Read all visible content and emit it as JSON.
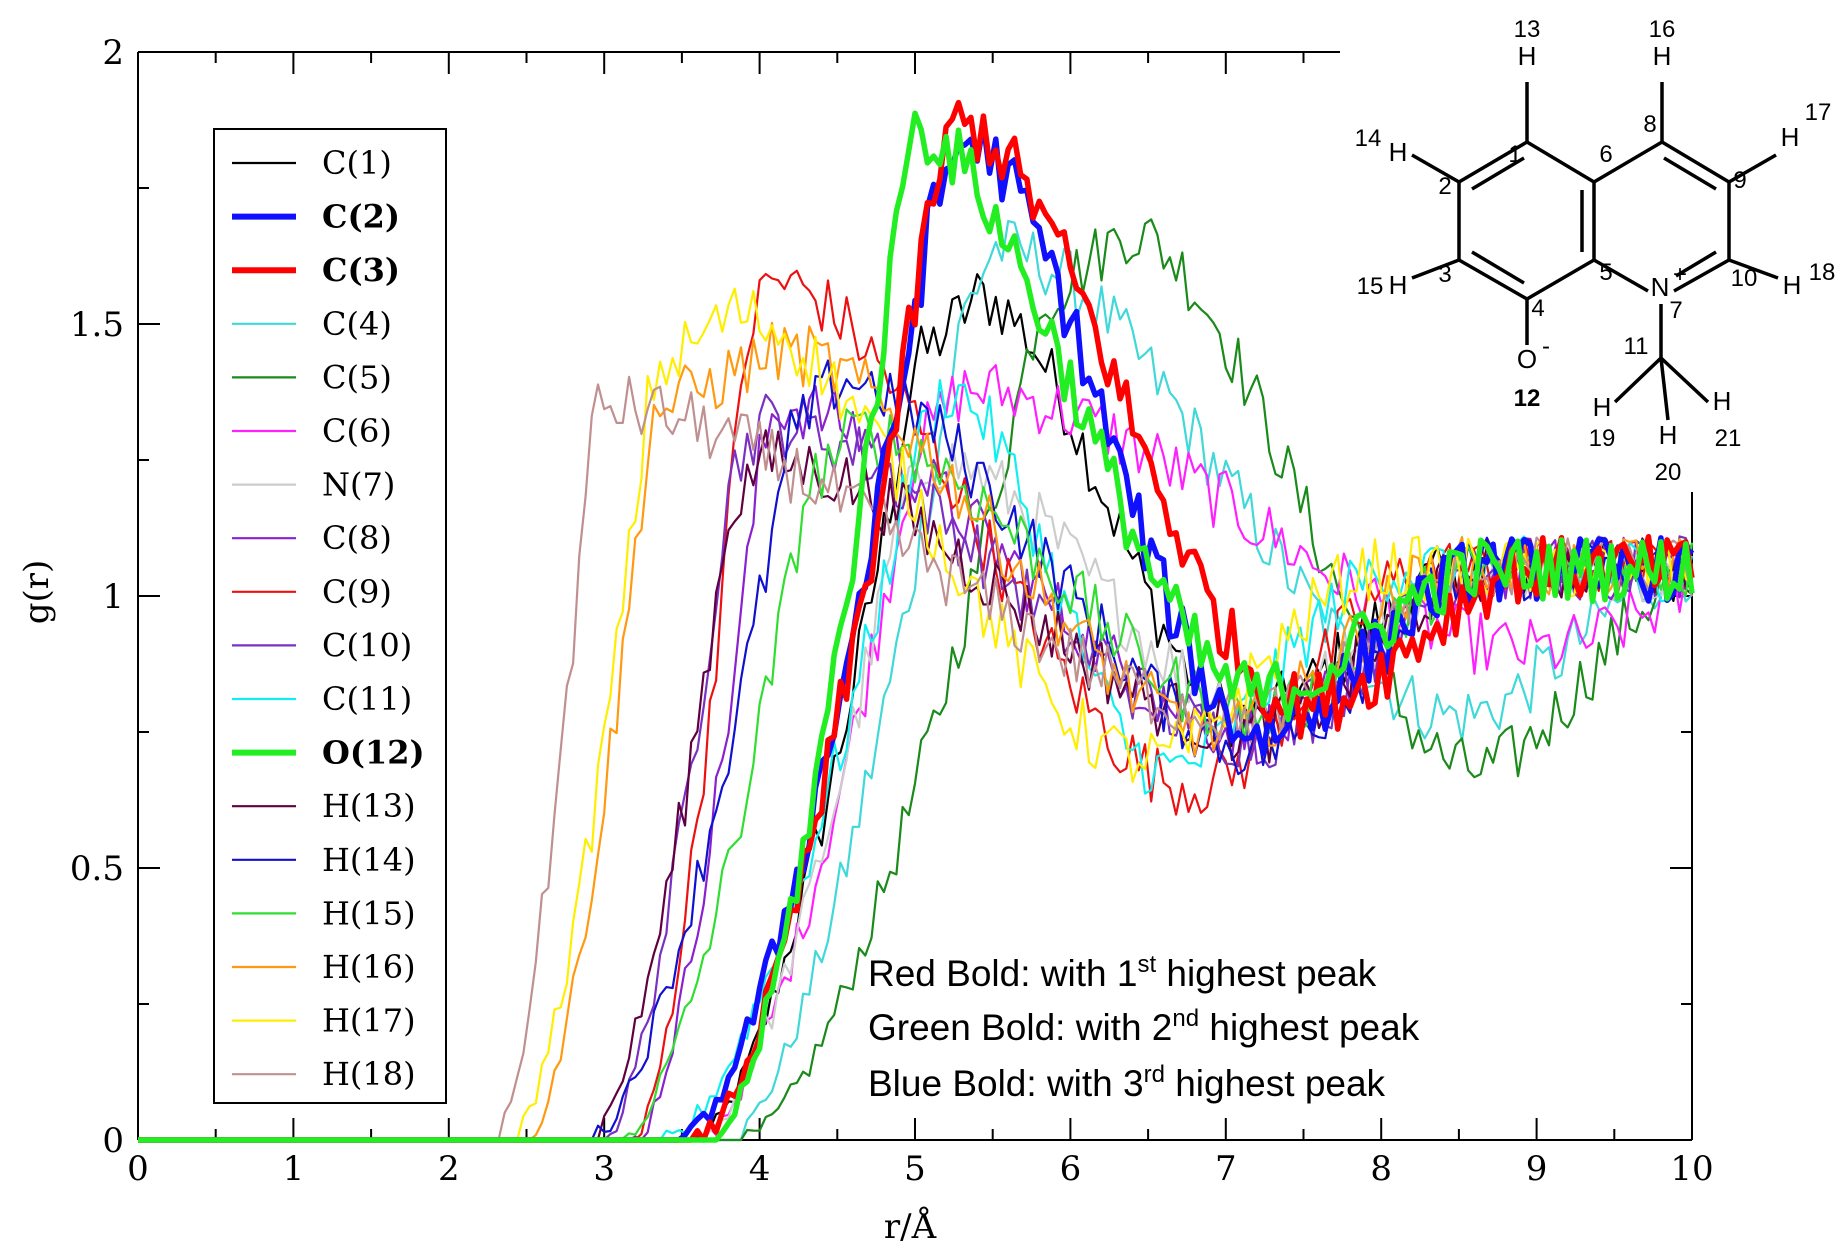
{
  "chart_data": {
    "type": "line",
    "xlabel": "r/Å",
    "ylabel": "g(r)",
    "xlim": [
      0,
      10
    ],
    "ylim": [
      0,
      2
    ],
    "x_ticks": [
      "0",
      "1",
      "2",
      "3",
      "4",
      "5",
      "6",
      "7",
      "8",
      "9",
      "10"
    ],
    "y_ticks": [
      "0",
      "0.5",
      "1",
      "1.5",
      "2"
    ],
    "grid": false,
    "legend_position": "top-left",
    "series": [
      {
        "name": "C(1)",
        "color": "#000000",
        "bold": false,
        "onset": 3.6,
        "peak_r": 5.4,
        "peak_g": 1.55,
        "rise_end": 5.0,
        "dip_r": 7.1,
        "dip_g": 0.78
      },
      {
        "name": "C(2)",
        "color": "#1010ff",
        "bold": true,
        "onset": 3.5,
        "peak_r": 5.3,
        "peak_g": 1.84,
        "rise_end": 5.1,
        "dip_r": 7.2,
        "dip_g": 0.75
      },
      {
        "name": "C(3)",
        "color": "#ff0000",
        "bold": true,
        "onset": 3.6,
        "peak_r": 5.25,
        "peak_g": 1.87,
        "rise_end": 5.1,
        "dip_r": 7.5,
        "dip_g": 0.8
      },
      {
        "name": "C(4)",
        "color": "#40d8d8",
        "bold": false,
        "onset": 3.8,
        "peak_r": 5.5,
        "peak_g": 1.64,
        "rise_end": 5.3,
        "dip_r": 8.5,
        "dip_g": 0.78
      },
      {
        "name": "C(5)",
        "color": "#1a8a1a",
        "bold": false,
        "onset": 3.9,
        "peak_r": 6.35,
        "peak_g": 1.67,
        "rise_end": 5.8,
        "dip_r": 8.6,
        "dip_g": 0.68
      },
      {
        "name": "C(6)",
        "color": "#ff20ff",
        "bold": false,
        "onset": 3.6,
        "peak_r": 5.3,
        "peak_g": 1.38,
        "rise_end": 5.0,
        "dip_r": 9.0,
        "dip_g": 0.9
      },
      {
        "name": "N(7)",
        "color": "#cccccc",
        "bold": false,
        "onset": 3.6,
        "peak_r": 5.1,
        "peak_g": 1.25,
        "rise_end": 4.9,
        "dip_r": 7.2,
        "dip_g": 0.8
      },
      {
        "name": "C(8)",
        "color": "#8a20d0",
        "bold": false,
        "onset": 3.2,
        "peak_r": 4.1,
        "peak_g": 1.35,
        "rise_end": 4.0,
        "dip_r": 7.2,
        "dip_g": 0.75
      },
      {
        "name": "C(9)",
        "color": "#ee1010",
        "bold": false,
        "onset": 3.2,
        "peak_r": 4.05,
        "peak_g": 1.58,
        "rise_end": 3.9,
        "dip_r": 6.8,
        "dip_g": 0.65
      },
      {
        "name": "C(10)",
        "color": "#7a30c0",
        "bold": false,
        "onset": 3.0,
        "peak_r": 4.0,
        "peak_g": 1.32,
        "rise_end": 3.8,
        "dip_r": 7.2,
        "dip_g": 0.74
      },
      {
        "name": "C(11)",
        "color": "#10f0f0",
        "bold": false,
        "onset": 3.4,
        "peak_r": 5.2,
        "peak_g": 1.38,
        "rise_end": 5.0,
        "dip_r": 6.6,
        "dip_g": 0.68
      },
      {
        "name": "O(12)",
        "color": "#22ee22",
        "bold": true,
        "onset": 3.7,
        "peak_r": 4.95,
        "peak_g": 1.86,
        "rise_end": 4.9,
        "dip_r": 7.2,
        "dip_g": 0.82
      },
      {
        "name": "H(13)",
        "color": "#600040",
        "bold": false,
        "onset": 2.9,
        "peak_r": 4.0,
        "peak_g": 1.25,
        "rise_end": 3.8,
        "dip_r": 7.2,
        "dip_g": 0.75
      },
      {
        "name": "H(14)",
        "color": "#1010d0",
        "bold": false,
        "onset": 2.9,
        "peak_r": 4.5,
        "peak_g": 1.4,
        "rise_end": 4.2,
        "dip_r": 7.2,
        "dip_g": 0.72
      },
      {
        "name": "H(15)",
        "color": "#30dd30",
        "bold": false,
        "onset": 3.1,
        "peak_r": 4.6,
        "peak_g": 1.3,
        "rise_end": 4.3,
        "dip_r": 7.2,
        "dip_g": 0.78
      },
      {
        "name": "H(16)",
        "color": "#ff9910",
        "bold": false,
        "onset": 2.5,
        "peak_r": 4.1,
        "peak_g": 1.45,
        "rise_end": 3.3,
        "dip_r": 7.0,
        "dip_g": 0.75
      },
      {
        "name": "H(17)",
        "color": "#ffee00",
        "bold": false,
        "onset": 2.4,
        "peak_r": 3.8,
        "peak_g": 1.52,
        "rise_end": 3.3,
        "dip_r": 6.5,
        "dip_g": 0.7
      },
      {
        "name": "H(18)",
        "color": "#c09090",
        "bold": false,
        "onset": 2.3,
        "peak_r": 2.95,
        "peak_g": 1.35,
        "rise_end": 2.9,
        "dip_r": 7.2,
        "dip_g": 0.78
      }
    ],
    "annotations": {
      "line1_pre": "Red Bold: with 1",
      "line1_sup": "st",
      "line1_post": " highest peak",
      "line2_pre": "Green Bold: with 2",
      "line2_sup": "nd",
      "line2_post": " highest peak",
      "line3_pre": "Blue Bold: with 3",
      "line3_sup": "rd",
      "line3_post": " highest peak"
    }
  },
  "molecule": {
    "atom_numbers": [
      "1",
      "2",
      "3",
      "4",
      "5",
      "6",
      "7",
      "8",
      "9",
      "10",
      "11",
      "12",
      "13",
      "14",
      "15",
      "16",
      "17",
      "18",
      "19",
      "20",
      "21"
    ],
    "hydrogen_label": "H",
    "nitrogen_label": "N",
    "nitrogen_charge": "+",
    "oxygen_label": "O",
    "oxygen_charge": "-",
    "highlight_colors": {
      "2": "#3050e0",
      "3": "#e04040",
      "12": "#80e060"
    }
  }
}
